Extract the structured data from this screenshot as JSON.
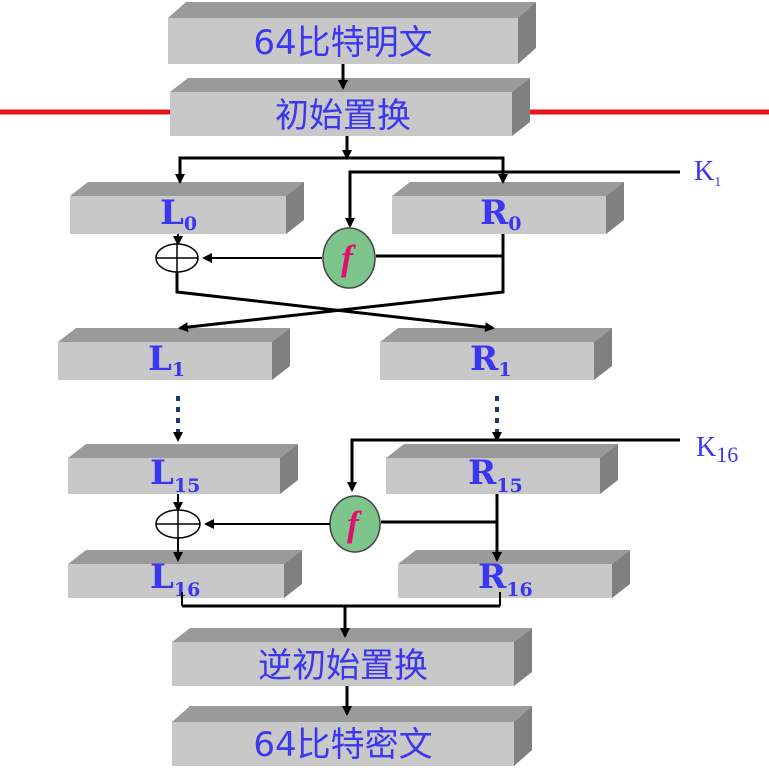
{
  "blocks": {
    "plaintext": "64比特明文",
    "initial_permutation": "初始置换",
    "inverse_permutation": "逆初始置换",
    "ciphertext": "64比特密文"
  },
  "registers": {
    "l0": {
      "base": "L",
      "sub": "0"
    },
    "r0": {
      "base": "R",
      "sub": "0"
    },
    "l1": {
      "base": "L",
      "sub": "1"
    },
    "r1": {
      "base": "R",
      "sub": "1"
    },
    "l15": {
      "base": "L",
      "sub": "15"
    },
    "r15": {
      "base": "R",
      "sub": "15"
    },
    "l16": {
      "base": "L",
      "sub": "16"
    },
    "r16": {
      "base": "R",
      "sub": "16"
    }
  },
  "keys": {
    "k1": {
      "base": "K",
      "sub": "1"
    },
    "k16": {
      "base": "K",
      "sub": "16"
    }
  },
  "function_label": "f",
  "colors": {
    "label_blue": "#3b36f0",
    "function_green": "#7dc58a",
    "function_text": "#e0116e",
    "red_rule": "#e8141c",
    "box_gray": "#c8c8c8"
  }
}
